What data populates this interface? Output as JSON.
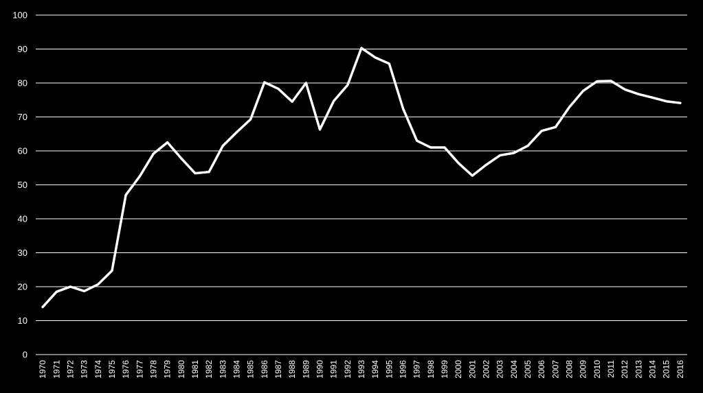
{
  "chart_data": {
    "type": "line",
    "title": "",
    "xlabel": "",
    "ylabel": "",
    "x": [
      "1970",
      "1971",
      "1972",
      "1973",
      "1974",
      "1975",
      "1976",
      "1977",
      "1978",
      "1979",
      "1980",
      "1981",
      "1982",
      "1983",
      "1984",
      "1985",
      "1986",
      "1987",
      "1988",
      "1989",
      "1990",
      "1991",
      "1992",
      "1993",
      "1994",
      "1995",
      "1996",
      "1997",
      "1998",
      "1999",
      "2000",
      "2001",
      "2002",
      "2003",
      "2004",
      "2005",
      "2006",
      "2007",
      "2008",
      "2009",
      "2010",
      "2011",
      "2012",
      "2013",
      "2014",
      "2015",
      "2016"
    ],
    "series": [
      {
        "values": [
          14,
          18.5,
          20,
          18.7,
          20.7,
          24.7,
          47,
          52.5,
          59.2,
          62.5,
          57.8,
          53.4,
          53.8,
          61.5,
          65.5,
          69.3,
          80.2,
          78.3,
          74.5,
          80,
          66.3,
          74.7,
          79.4,
          90.3,
          87.5,
          85.7,
          72.5,
          63,
          61,
          61,
          56.4,
          52.7,
          55.9,
          58.7,
          59.4,
          61.5,
          65.9,
          67,
          72.9,
          77.7,
          80.5,
          80.6,
          78.1,
          76.7,
          75.7,
          74.6,
          74.1
        ]
      }
    ],
    "ylim": [
      0,
      100
    ],
    "yticks": [
      "0",
      "10",
      "20",
      "30",
      "40",
      "50",
      "60",
      "70",
      "80",
      "90",
      "100"
    ],
    "grid": true,
    "legend": "none",
    "colors": {
      "background": "#000000",
      "line": "#ffffff",
      "grid": "#ffffff",
      "text": "#ffffff"
    }
  }
}
